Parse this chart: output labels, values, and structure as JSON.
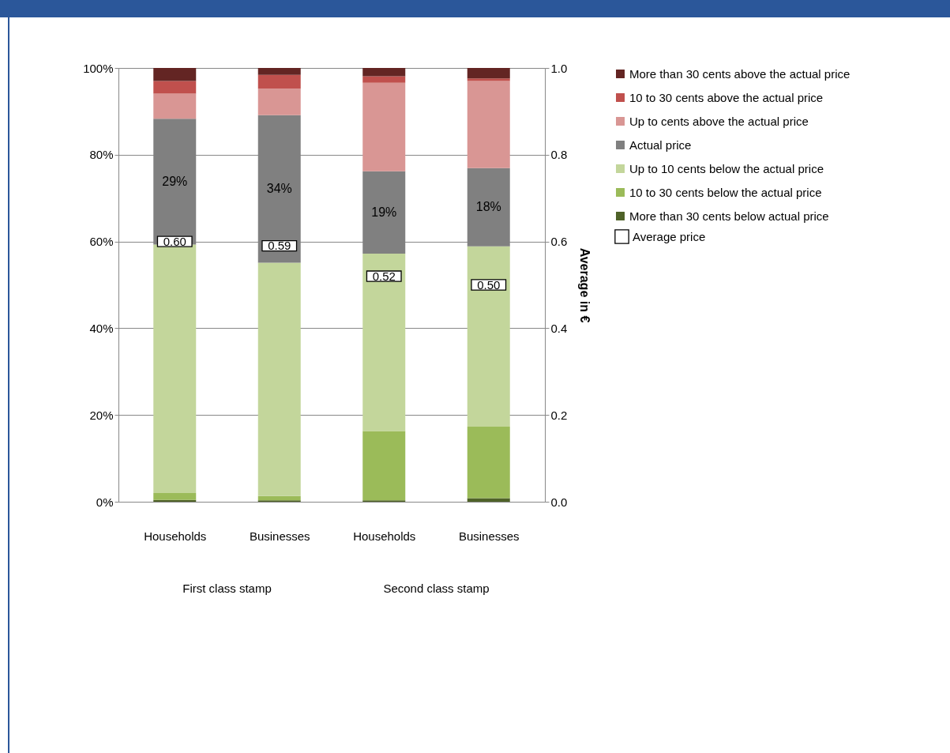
{
  "chart_data": {
    "type": "bar",
    "stacked": true,
    "categories": [
      "Households",
      "Businesses",
      "Households",
      "Businesses"
    ],
    "annotations": [
      "First class stamp",
      "Second class stamp"
    ],
    "y2label": "Average in €",
    "ylim": [
      0,
      100
    ],
    "yticks": [
      {
        "value": 0,
        "label": "0%"
      },
      {
        "value": 20,
        "label": "20%"
      },
      {
        "value": 40,
        "label": "40%"
      },
      {
        "value": 60,
        "label": "60%"
      },
      {
        "value": 80,
        "label": "80%"
      },
      {
        "value": 100,
        "label": "100%"
      }
    ],
    "y2lim": [
      0,
      1
    ],
    "y2ticks": [
      {
        "value": 0,
        "label": "0.0"
      },
      {
        "value": 0.2,
        "label": "0.2"
      },
      {
        "value": 0.4,
        "label": "0.4"
      },
      {
        "value": 0.6,
        "label": "0.6"
      },
      {
        "value": 0.8,
        "label": "0.8"
      },
      {
        "value": 1,
        "label": "1.0"
      }
    ],
    "grid": "y",
    "legend": "right",
    "series": [
      {
        "name": "More than 30 cents below actual price",
        "color": "#4f6228",
        "values": [
          0.4,
          0.3,
          0.3,
          0.8
        ]
      },
      {
        "name": "10 to 30 cents below the actual price",
        "color": "#9bbb59",
        "values": [
          1.6,
          1.0,
          16.0,
          16.5
        ]
      },
      {
        "name": "Up to 10 cents below the actual price",
        "color": "#c3d69b",
        "values": [
          57.3,
          53.8,
          40.9,
          41.6
        ]
      },
      {
        "name": "Actual price",
        "color": "#808080",
        "values": [
          29,
          34,
          19,
          18
        ],
        "value_labels": [
          "29%",
          "34%",
          "19%",
          "18%"
        ]
      },
      {
        "name": "Up to cents above the actual price",
        "color": "#d99694",
        "values": [
          5.8,
          6.1,
          20.4,
          20.1
        ]
      },
      {
        "name": "10 to 30 cents above the actual price",
        "color": "#c0504d",
        "values": [
          2.9,
          3.2,
          1.5,
          0.6
        ]
      },
      {
        "name": "More than 30 cents above the actual price",
        "color": "#632523",
        "values": [
          3.0,
          1.6,
          1.9,
          2.4
        ]
      },
      {
        "name": "Average price",
        "type": "scatter",
        "axis": "y2",
        "marker": "square",
        "color": "#000000",
        "values": [
          0.6,
          0.59,
          0.52,
          0.5
        ],
        "value_labels": [
          "0.60",
          "0.59",
          "0.52",
          "0.50"
        ]
      }
    ]
  }
}
